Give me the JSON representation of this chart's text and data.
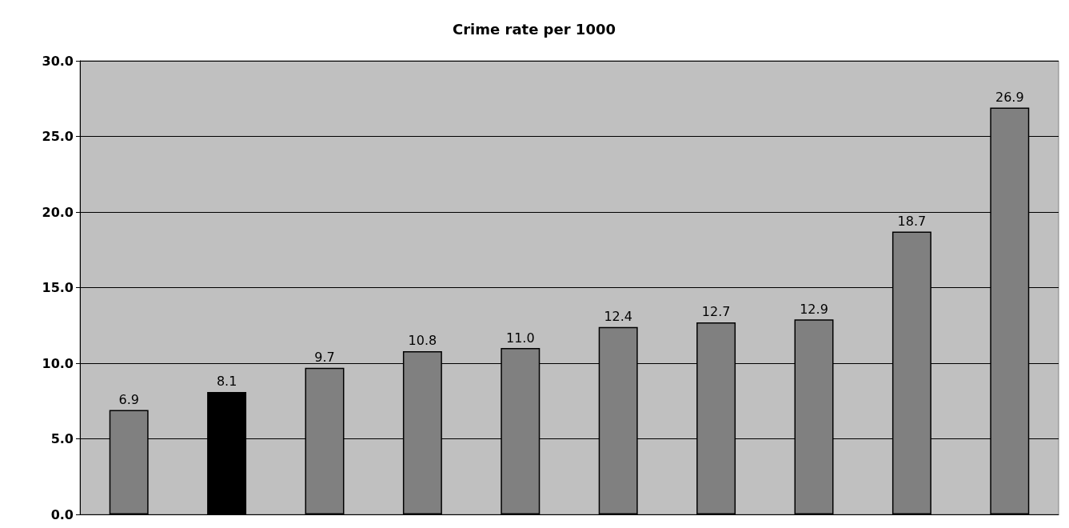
{
  "chart_data": {
    "type": "bar",
    "title": "Crime rate per 1000",
    "categories": [
      null,
      null,
      null,
      null,
      null,
      null,
      null,
      null,
      null,
      null
    ],
    "values": [
      6.9,
      8.1,
      9.7,
      10.8,
      11.0,
      12.4,
      12.7,
      12.9,
      18.7,
      26.9
    ],
    "colors": [
      "#808080",
      "#000000",
      "#808080",
      "#808080",
      "#808080",
      "#808080",
      "#808080",
      "#808080",
      "#808080",
      "#808080"
    ],
    "ylim": [
      0,
      30
    ],
    "yticks": [
      {
        "value": 0,
        "label": "0.0"
      },
      {
        "value": 5,
        "label": "5.0"
      },
      {
        "value": 10,
        "label": "10.0"
      },
      {
        "value": 15,
        "label": "15.0"
      },
      {
        "value": 20,
        "label": "20.0"
      },
      {
        "value": 25,
        "label": "25.0"
      },
      {
        "value": 30,
        "label": "30.0"
      }
    ],
    "value_labels": [
      "6.9",
      "8.1",
      "9.7",
      "10.8",
      "11.0",
      "12.4",
      "12.7",
      "12.9",
      "18.7",
      "26.9"
    ],
    "grid": "y"
  }
}
